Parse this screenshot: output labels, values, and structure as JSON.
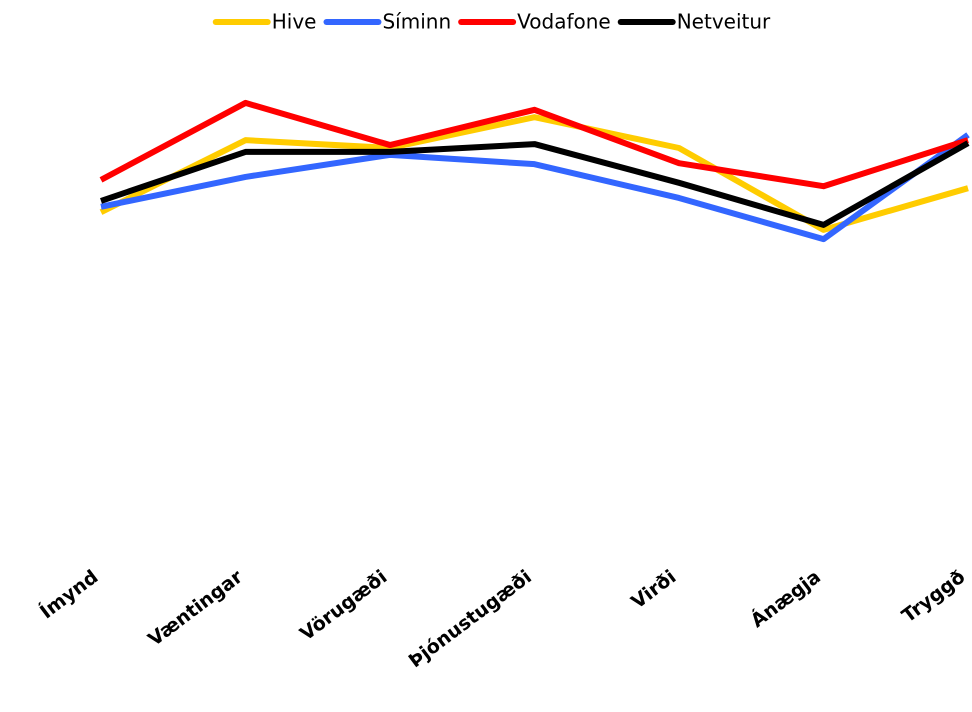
{
  "chart_data": {
    "type": "line",
    "categories": [
      "Ímynd",
      "Væntingar",
      "Vörugæði",
      "Þjónustugæði",
      "Virði",
      "Ánægja",
      "Tryggð"
    ],
    "series": [
      {
        "name": "Hive",
        "color": "#FFCC00",
        "values": [
          66.9,
          81.6,
          80.0,
          86.3,
          80.0,
          63.3,
          71.8
        ]
      },
      {
        "name": "Síminn",
        "color": "#3366FF",
        "values": [
          68.0,
          74.1,
          78.6,
          76.7,
          69.8,
          61.4,
          82.7
        ]
      },
      {
        "name": "Vodafone",
        "color": "#FF0000",
        "values": [
          73.5,
          89.2,
          80.6,
          87.8,
          76.9,
          72.2,
          81.6
        ]
      },
      {
        "name": "Netveitur",
        "color": "#000000",
        "values": [
          69.2,
          79.2,
          79.2,
          80.8,
          72.9,
          64.3,
          81.0
        ]
      }
    ],
    "ylim": [
      0,
      100
    ],
    "legend": "top",
    "grid": false
  }
}
